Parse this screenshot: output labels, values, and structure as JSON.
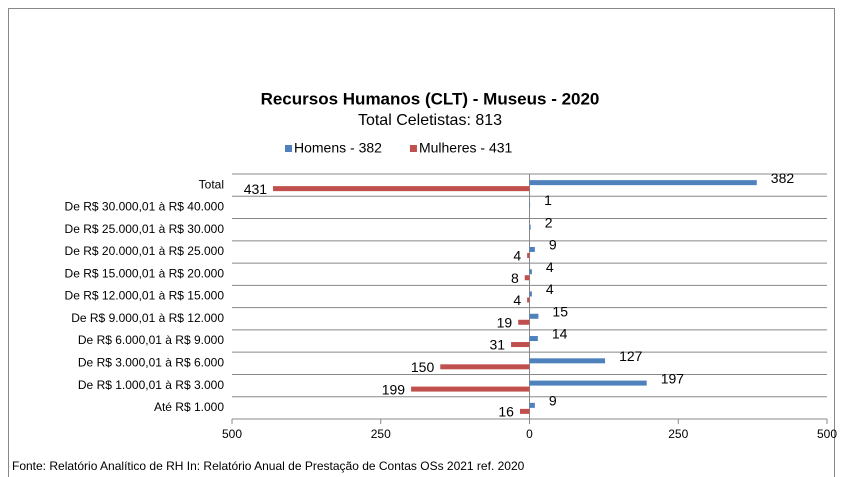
{
  "chart_data": {
    "type": "butterfly-bar",
    "title": "Recursos Humanos (CLT) - Museus - 2020",
    "subtitle": "Total Celetistas: 813",
    "categories": [
      "Total",
      "De R$ 30.000,01 à R$ 40.000",
      "De R$ 25.000,01 à R$ 30.000",
      "De R$ 20.000,01 à R$ 25.000",
      "De R$ 15.000,01 à R$ 20.000",
      "De R$ 12.000,01 à R$ 15.000",
      "De R$ 9.000,01 à R$ 12.000",
      "De R$ 6.000,01 à R$ 9.000",
      "De R$ 3.000,01 à R$ 6.000",
      "De R$ 1.000,01 à R$ 3.000",
      "Até R$ 1.000"
    ],
    "series": [
      {
        "name": "Homens - 382",
        "color": "#4f81bd",
        "values": [
          382,
          1,
          2,
          9,
          4,
          4,
          15,
          14,
          127,
          197,
          9
        ]
      },
      {
        "name": "Mulheres - 431",
        "color": "#c0504d",
        "values": [
          -431,
          null,
          null,
          -4,
          -8,
          -4,
          -19,
          -31,
          -150,
          -199,
          -16
        ],
        "value_labels": [
          "431",
          null,
          null,
          "4",
          "8",
          "4",
          "19",
          "31",
          "150",
          "199",
          "16"
        ]
      }
    ],
    "xlim": [
      -500,
      500
    ],
    "xticks": [
      {
        "value": -500,
        "label": "500"
      },
      {
        "value": -250,
        "label": "250"
      },
      0,
      250,
      500
    ],
    "legend": "top",
    "source": "Fonte: Relatório Analítico de RH In: Relatório Anual de Prestação de Contas OSs 2021 ref. 2020"
  }
}
